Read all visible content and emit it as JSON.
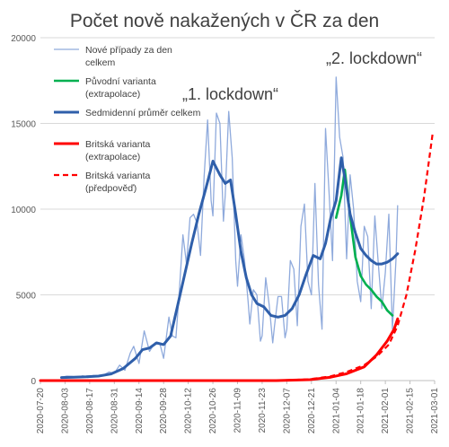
{
  "chart_data": {
    "type": "line",
    "title": "Počet nově nakažených v ČR za den",
    "xlabel": "",
    "ylabel": "",
    "ylim": [
      0,
      20000
    ],
    "xlim": [
      "2020-07-20",
      "2021-03-01"
    ],
    "y_ticks": [
      "0",
      "5000",
      "10000",
      "15000",
      "20000"
    ],
    "x_ticks": [
      "2020-07-20",
      "2020-08-03",
      "2020-08-17",
      "2020-08-31",
      "2020-09-14",
      "2020-09-28",
      "2020-10-12",
      "2020-10-26",
      "2020-11-09",
      "2020-11-23",
      "2020-12-07",
      "2020-12-21",
      "2021-01-04",
      "2021-01-18",
      "2021-02-01",
      "2021-02-15",
      "2021-03-01"
    ],
    "grid": "horizontal",
    "legend_position": "top-left",
    "annotations": [
      "„1. lockdown“",
      "„2. lockdown“"
    ],
    "series": [
      {
        "name": "Nové případy za den celkem",
        "color": "#8faadc",
        "style": "solid",
        "points": [
          [
            "2020-08-01",
            200
          ],
          [
            "2020-08-04",
            260
          ],
          [
            "2020-08-07",
            240
          ],
          [
            "2020-08-10",
            170
          ],
          [
            "2020-08-13",
            280
          ],
          [
            "2020-08-16",
            180
          ],
          [
            "2020-08-19",
            300
          ],
          [
            "2020-08-22",
            270
          ],
          [
            "2020-08-25",
            330
          ],
          [
            "2020-08-28",
            500
          ],
          [
            "2020-08-31",
            420
          ],
          [
            "2020-09-03",
            900
          ],
          [
            "2020-09-06",
            600
          ],
          [
            "2020-09-09",
            1600
          ],
          [
            "2020-09-11",
            2000
          ],
          [
            "2020-09-14",
            1000
          ],
          [
            "2020-09-17",
            2900
          ],
          [
            "2020-09-20",
            1700
          ],
          [
            "2020-09-23",
            2200
          ],
          [
            "2020-09-26",
            2100
          ],
          [
            "2020-09-28",
            1300
          ],
          [
            "2020-10-01",
            3700
          ],
          [
            "2020-10-03",
            2600
          ],
          [
            "2020-10-05",
            2500
          ],
          [
            "2020-10-07",
            5300
          ],
          [
            "2020-10-09",
            8500
          ],
          [
            "2020-10-11",
            6800
          ],
          [
            "2020-10-13",
            9500
          ],
          [
            "2020-10-15",
            9700
          ],
          [
            "2020-10-17",
            9200
          ],
          [
            "2020-10-19",
            7300
          ],
          [
            "2020-10-21",
            11900
          ],
          [
            "2020-10-23",
            15200
          ],
          [
            "2020-10-25",
            10500
          ],
          [
            "2020-10-26",
            9600
          ],
          [
            "2020-10-28",
            15600
          ],
          [
            "2020-10-30",
            15000
          ],
          [
            "2020-11-01",
            9300
          ],
          [
            "2020-11-02",
            10800
          ],
          [
            "2020-11-04",
            15700
          ],
          [
            "2020-11-06",
            13000
          ],
          [
            "2020-11-08",
            7000
          ],
          [
            "2020-11-09",
            5500
          ],
          [
            "2020-11-11",
            8500
          ],
          [
            "2020-11-13",
            7000
          ],
          [
            "2020-11-15",
            4600
          ],
          [
            "2020-11-16",
            3300
          ],
          [
            "2020-11-18",
            5300
          ],
          [
            "2020-11-20",
            5000
          ],
          [
            "2020-11-22",
            2300
          ],
          [
            "2020-11-23",
            2600
          ],
          [
            "2020-11-25",
            6000
          ],
          [
            "2020-11-27",
            4400
          ],
          [
            "2020-11-29",
            2200
          ],
          [
            "2020-11-30",
            3200
          ],
          [
            "2020-12-02",
            4900
          ],
          [
            "2020-12-04",
            4900
          ],
          [
            "2020-12-06",
            2500
          ],
          [
            "2020-12-07",
            3000
          ],
          [
            "2020-12-09",
            7000
          ],
          [
            "2020-12-11",
            6500
          ],
          [
            "2020-12-13",
            3200
          ],
          [
            "2020-12-15",
            9000
          ],
          [
            "2020-12-17",
            10300
          ],
          [
            "2020-12-19",
            5800
          ],
          [
            "2020-12-21",
            5000
          ],
          [
            "2020-12-23",
            11500
          ],
          [
            "2020-12-25",
            5600
          ],
          [
            "2020-12-27",
            3000
          ],
          [
            "2020-12-29",
            14700
          ],
          [
            "2020-12-31",
            11000
          ],
          [
            "2021-01-02",
            7000
          ],
          [
            "2021-01-04",
            17700
          ],
          [
            "2021-01-06",
            14200
          ],
          [
            "2021-01-08",
            13000
          ],
          [
            "2021-01-10",
            7100
          ],
          [
            "2021-01-12",
            12000
          ],
          [
            "2021-01-14",
            10000
          ],
          [
            "2021-01-16",
            5800
          ],
          [
            "2021-01-18",
            4600
          ],
          [
            "2021-01-20",
            9000
          ],
          [
            "2021-01-22",
            8400
          ],
          [
            "2021-01-24",
            4200
          ],
          [
            "2021-01-26",
            9600
          ],
          [
            "2021-01-28",
            6800
          ],
          [
            "2021-01-30",
            4200
          ],
          [
            "2021-02-01",
            6300
          ],
          [
            "2021-02-03",
            9700
          ],
          [
            "2021-02-05",
            3000
          ],
          [
            "2021-02-07",
            7000
          ],
          [
            "2021-02-08",
            10200
          ]
        ]
      },
      {
        "name": "Původní varianta (extrapolace)",
        "color": "#00b050",
        "style": "solid",
        "points": [
          [
            "2021-01-04",
            9500
          ],
          [
            "2021-01-07",
            10800
          ],
          [
            "2021-01-09",
            12300
          ],
          [
            "2021-01-12",
            9600
          ],
          [
            "2021-01-15",
            7200
          ],
          [
            "2021-01-18",
            6100
          ],
          [
            "2021-01-21",
            5600
          ],
          [
            "2021-01-24",
            5300
          ],
          [
            "2021-01-27",
            4900
          ],
          [
            "2021-01-30",
            4600
          ],
          [
            "2021-02-02",
            4100
          ],
          [
            "2021-02-05",
            3800
          ]
        ]
      },
      {
        "name": "Sedmidenní průměr celkem",
        "color": "#2f5faa",
        "style": "solid",
        "points": [
          [
            "2020-08-01",
            180
          ],
          [
            "2020-08-08",
            200
          ],
          [
            "2020-08-15",
            220
          ],
          [
            "2020-08-22",
            260
          ],
          [
            "2020-08-29",
            380
          ],
          [
            "2020-09-05",
            700
          ],
          [
            "2020-09-12",
            1300
          ],
          [
            "2020-09-16",
            1800
          ],
          [
            "2020-09-20",
            1900
          ],
          [
            "2020-09-24",
            2200
          ],
          [
            "2020-09-28",
            2100
          ],
          [
            "2020-10-02",
            2600
          ],
          [
            "2020-10-06",
            4400
          ],
          [
            "2020-10-10",
            6200
          ],
          [
            "2020-10-14",
            8000
          ],
          [
            "2020-10-18",
            9700
          ],
          [
            "2020-10-22",
            11200
          ],
          [
            "2020-10-26",
            12800
          ],
          [
            "2020-10-30",
            12000
          ],
          [
            "2020-11-02",
            11500
          ],
          [
            "2020-11-05",
            11700
          ],
          [
            "2020-11-08",
            9700
          ],
          [
            "2020-11-11",
            7500
          ],
          [
            "2020-11-14",
            6000
          ],
          [
            "2020-11-17",
            5000
          ],
          [
            "2020-11-20",
            4500
          ],
          [
            "2020-11-24",
            4300
          ],
          [
            "2020-11-28",
            3800
          ],
          [
            "2020-12-02",
            3700
          ],
          [
            "2020-12-06",
            3800
          ],
          [
            "2020-12-10",
            4200
          ],
          [
            "2020-12-14",
            5000
          ],
          [
            "2020-12-18",
            6200
          ],
          [
            "2020-12-22",
            7300
          ],
          [
            "2020-12-26",
            7100
          ],
          [
            "2020-12-29",
            8000
          ],
          [
            "2021-01-01",
            9500
          ],
          [
            "2021-01-04",
            10500
          ],
          [
            "2021-01-07",
            13000
          ],
          [
            "2021-01-09",
            11800
          ],
          [
            "2021-01-12",
            9700
          ],
          [
            "2021-01-15",
            8600
          ],
          [
            "2021-01-18",
            7700
          ],
          [
            "2021-01-21",
            7300
          ],
          [
            "2021-01-24",
            7000
          ],
          [
            "2021-01-27",
            6800
          ],
          [
            "2021-01-30",
            6800
          ],
          [
            "2021-02-02",
            6900
          ],
          [
            "2021-02-05",
            7100
          ],
          [
            "2021-02-08",
            7400
          ]
        ]
      },
      {
        "name": "Britská varianta (extrapolace)",
        "color": "#ff0000",
        "style": "solid",
        "points": [
          [
            "2020-07-20",
            0
          ],
          [
            "2020-12-01",
            0
          ],
          [
            "2020-12-20",
            50
          ],
          [
            "2021-01-01",
            200
          ],
          [
            "2021-01-10",
            400
          ],
          [
            "2021-01-20",
            800
          ],
          [
            "2021-01-27",
            1500
          ],
          [
            "2021-02-02",
            2300
          ],
          [
            "2021-02-06",
            3000
          ],
          [
            "2021-02-08",
            3600
          ]
        ]
      },
      {
        "name": "Britská varianta (předpověď)",
        "color": "#ff0000",
        "style": "dashed",
        "points": [
          [
            "2020-12-01",
            0
          ],
          [
            "2020-12-20",
            80
          ],
          [
            "2021-01-01",
            250
          ],
          [
            "2021-01-10",
            500
          ],
          [
            "2021-01-20",
            900
          ],
          [
            "2021-01-27",
            1400
          ],
          [
            "2021-02-03",
            2100
          ],
          [
            "2021-02-08",
            3200
          ],
          [
            "2021-02-13",
            5000
          ],
          [
            "2021-02-18",
            7600
          ],
          [
            "2021-02-23",
            10700
          ],
          [
            "2021-02-28",
            14500
          ]
        ]
      }
    ]
  }
}
